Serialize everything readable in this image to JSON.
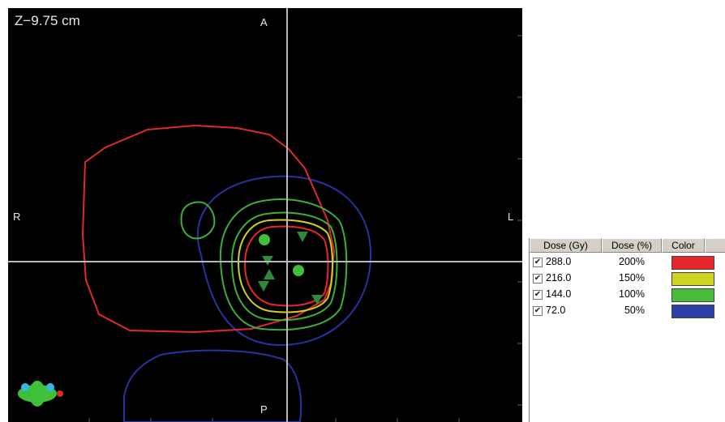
{
  "viewer": {
    "slice_label": "Z−9.75 cm",
    "orientation": {
      "anterior": "A",
      "posterior": "P",
      "right": "R",
      "left": "L"
    }
  },
  "legend": {
    "headers": [
      "Dose (Gy)",
      "Dose (%)",
      "Color"
    ],
    "rows": [
      {
        "dose_gy": "288.0",
        "dose_pct": "200%",
        "color": "#e8262a",
        "checked": true
      },
      {
        "dose_gy": "216.0",
        "dose_pct": "150%",
        "color": "#ccd41f",
        "checked": true
      },
      {
        "dose_gy": "144.0",
        "dose_pct": "100%",
        "color": "#4cbb3a",
        "checked": true
      },
      {
        "dose_gy": "72.0",
        "dose_pct": "50%",
        "color": "#2b3fa7",
        "checked": true
      }
    ]
  },
  "colors": {
    "isodose_200": "#e8262a",
    "isodose_150": "#ccd41f",
    "isodose_100": "#3fae3a",
    "isodose_50": "#2633a0",
    "structure_outline": "#e02a2a",
    "marker": "#2e8b3a"
  }
}
